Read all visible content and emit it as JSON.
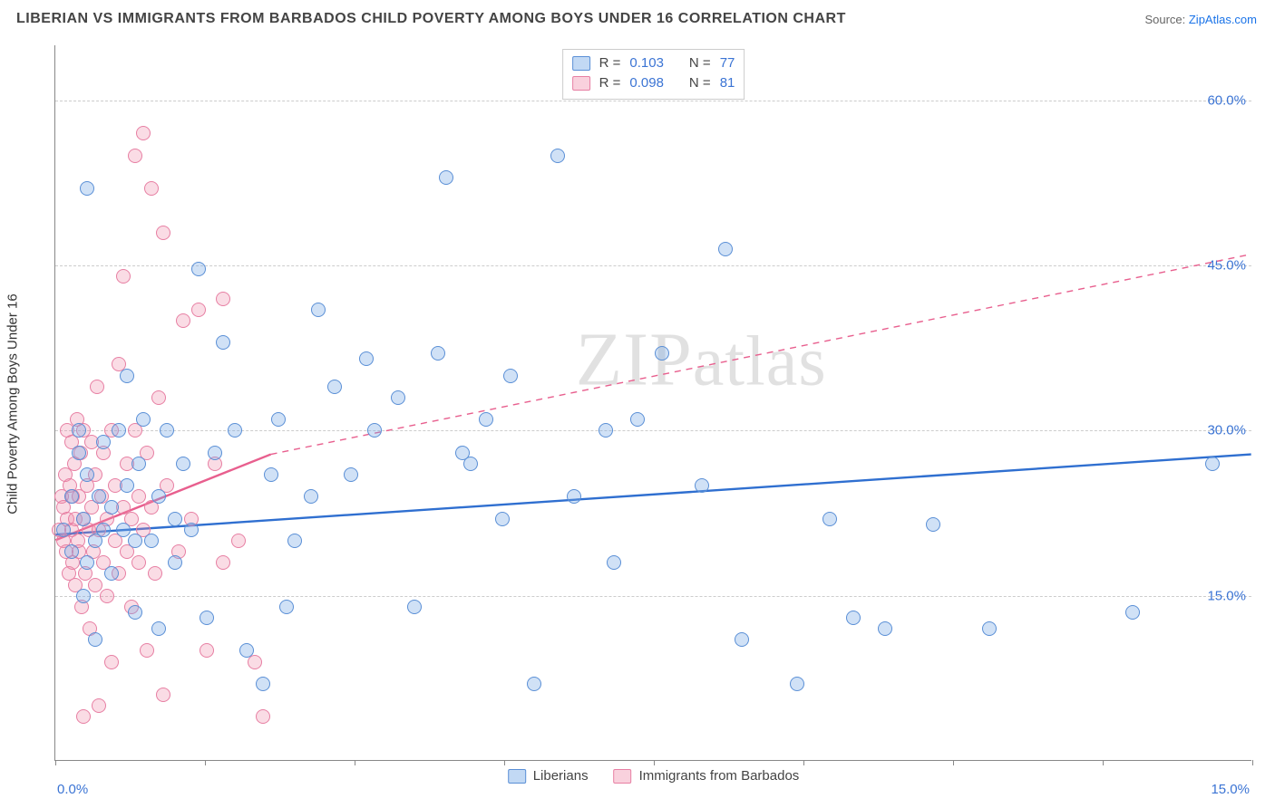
{
  "title": "LIBERIAN VS IMMIGRANTS FROM BARBADOS CHILD POVERTY AMONG BOYS UNDER 16 CORRELATION CHART",
  "source": {
    "label": "Source: ",
    "name": "ZipAtlas.com"
  },
  "chart": {
    "type": "scatter",
    "y_axis_title": "Child Poverty Among Boys Under 16",
    "xlim": [
      0,
      15
    ],
    "ylim": [
      0,
      65
    ],
    "x_ticks_label": {
      "min": "0.0%",
      "max": "15.0%"
    },
    "y_ticks": [
      {
        "v": 15,
        "label": "15.0%"
      },
      {
        "v": 30,
        "label": "30.0%"
      },
      {
        "v": 45,
        "label": "45.0%"
      },
      {
        "v": 60,
        "label": "60.0%"
      }
    ],
    "x_tick_positions": [
      0,
      1.88,
      3.75,
      5.63,
      7.5,
      9.38,
      11.25,
      13.13,
      15
    ],
    "background_color": "#ffffff",
    "grid_color": "#cccccc",
    "series": {
      "a": {
        "label": "Liberians",
        "marker_fill": "rgba(120,170,230,0.35)",
        "marker_stroke": "#5a8fd6",
        "line_color": "#2f6fd0",
        "line_width": 2.4,
        "R": "0.103",
        "N": "77",
        "trend_solid": {
          "x1": 0,
          "y1": 20.5,
          "x2": 15,
          "y2": 27.8
        },
        "points": [
          [
            0.1,
            21
          ],
          [
            0.2,
            24
          ],
          [
            0.2,
            19
          ],
          [
            0.3,
            28
          ],
          [
            0.3,
            30
          ],
          [
            0.35,
            15
          ],
          [
            0.35,
            22
          ],
          [
            0.4,
            26
          ],
          [
            0.4,
            18
          ],
          [
            0.5,
            20
          ],
          [
            0.5,
            11
          ],
          [
            0.55,
            24
          ],
          [
            0.6,
            29
          ],
          [
            0.6,
            21
          ],
          [
            0.7,
            23
          ],
          [
            0.7,
            17
          ],
          [
            0.8,
            30
          ],
          [
            0.85,
            21
          ],
          [
            0.9,
            25
          ],
          [
            0.9,
            35
          ],
          [
            1.0,
            20
          ],
          [
            1.0,
            13.5
          ],
          [
            1.05,
            27
          ],
          [
            1.1,
            31
          ],
          [
            1.2,
            20
          ],
          [
            1.3,
            24
          ],
          [
            1.3,
            12
          ],
          [
            1.4,
            30
          ],
          [
            1.5,
            22
          ],
          [
            1.5,
            18
          ],
          [
            1.6,
            27
          ],
          [
            1.7,
            21
          ],
          [
            1.8,
            44.7
          ],
          [
            1.9,
            13
          ],
          [
            2.0,
            28
          ],
          [
            2.1,
            38
          ],
          [
            2.25,
            30
          ],
          [
            2.4,
            10
          ],
          [
            2.6,
            7
          ],
          [
            2.7,
            26
          ],
          [
            2.8,
            31
          ],
          [
            2.9,
            14
          ],
          [
            3.0,
            20
          ],
          [
            3.2,
            24
          ],
          [
            3.3,
            41
          ],
          [
            3.5,
            34
          ],
          [
            3.7,
            26
          ],
          [
            3.9,
            36.5
          ],
          [
            4.0,
            30
          ],
          [
            4.3,
            33
          ],
          [
            4.5,
            14
          ],
          [
            4.8,
            37
          ],
          [
            4.9,
            53
          ],
          [
            5.1,
            28
          ],
          [
            5.2,
            27
          ],
          [
            5.4,
            31
          ],
          [
            5.6,
            22
          ],
          [
            5.7,
            35
          ],
          [
            6.0,
            7
          ],
          [
            6.3,
            55
          ],
          [
            6.5,
            24
          ],
          [
            7.0,
            18
          ],
          [
            7.3,
            31
          ],
          [
            7.6,
            37
          ],
          [
            8.1,
            25
          ],
          [
            8.4,
            46.5
          ],
          [
            8.6,
            11
          ],
          [
            9.3,
            7
          ],
          [
            9.7,
            22
          ],
          [
            10.0,
            13
          ],
          [
            10.4,
            12
          ],
          [
            11.0,
            21.5
          ],
          [
            11.7,
            12
          ],
          [
            13.5,
            13.5
          ],
          [
            14.5,
            27
          ],
          [
            0.4,
            52
          ],
          [
            6.9,
            30
          ]
        ]
      },
      "b": {
        "label": "Immigrants from Barbados",
        "marker_fill": "rgba(240,140,170,0.30)",
        "marker_stroke": "#e77fa3",
        "line_color": "#e85f8e",
        "line_width": 2.4,
        "R": "0.098",
        "N": "81",
        "trend_solid": {
          "x1": 0,
          "y1": 20.0,
          "x2": 2.7,
          "y2": 27.8
        },
        "trend_dashed": {
          "x1": 2.7,
          "y1": 27.8,
          "x2": 15,
          "y2": 46.0
        },
        "points": [
          [
            0.05,
            21
          ],
          [
            0.08,
            24
          ],
          [
            0.1,
            20
          ],
          [
            0.1,
            23
          ],
          [
            0.12,
            26
          ],
          [
            0.14,
            19
          ],
          [
            0.15,
            22
          ],
          [
            0.15,
            30
          ],
          [
            0.17,
            17
          ],
          [
            0.18,
            25
          ],
          [
            0.2,
            21
          ],
          [
            0.2,
            29
          ],
          [
            0.22,
            18
          ],
          [
            0.22,
            24
          ],
          [
            0.24,
            27
          ],
          [
            0.25,
            16
          ],
          [
            0.25,
            22
          ],
          [
            0.27,
            31
          ],
          [
            0.28,
            20
          ],
          [
            0.3,
            24
          ],
          [
            0.3,
            19
          ],
          [
            0.32,
            28
          ],
          [
            0.33,
            14
          ],
          [
            0.35,
            22
          ],
          [
            0.35,
            30
          ],
          [
            0.38,
            17
          ],
          [
            0.4,
            25
          ],
          [
            0.42,
            21
          ],
          [
            0.43,
            12
          ],
          [
            0.45,
            23
          ],
          [
            0.45,
            29
          ],
          [
            0.48,
            19
          ],
          [
            0.5,
            26
          ],
          [
            0.5,
            16
          ],
          [
            0.52,
            34
          ],
          [
            0.55,
            21
          ],
          [
            0.58,
            24
          ],
          [
            0.6,
            18
          ],
          [
            0.6,
            28
          ],
          [
            0.65,
            15
          ],
          [
            0.65,
            22
          ],
          [
            0.7,
            30
          ],
          [
            0.7,
            9
          ],
          [
            0.75,
            20
          ],
          [
            0.75,
            25
          ],
          [
            0.8,
            17
          ],
          [
            0.8,
            36
          ],
          [
            0.85,
            23
          ],
          [
            0.85,
            44
          ],
          [
            0.9,
            19
          ],
          [
            0.9,
            27
          ],
          [
            0.95,
            14
          ],
          [
            0.95,
            22
          ],
          [
            1.0,
            30
          ],
          [
            1.0,
            55
          ],
          [
            1.05,
            18
          ],
          [
            1.05,
            24
          ],
          [
            1.1,
            57
          ],
          [
            1.1,
            21
          ],
          [
            1.15,
            28
          ],
          [
            1.15,
            10
          ],
          [
            1.2,
            23
          ],
          [
            1.2,
            52
          ],
          [
            1.25,
            17
          ],
          [
            1.3,
            33
          ],
          [
            1.35,
            48
          ],
          [
            1.4,
            25
          ],
          [
            1.55,
            19
          ],
          [
            1.6,
            40
          ],
          [
            1.7,
            22
          ],
          [
            1.8,
            41
          ],
          [
            1.9,
            10
          ],
          [
            2.0,
            27
          ],
          [
            2.1,
            18
          ],
          [
            2.1,
            42
          ],
          [
            2.3,
            20
          ],
          [
            2.5,
            9
          ],
          [
            2.6,
            4
          ],
          [
            1.35,
            6
          ],
          [
            0.35,
            4
          ],
          [
            0.55,
            5
          ]
        ]
      }
    },
    "legend_top": {
      "rows": [
        {
          "sw": "a",
          "r_label": "R =",
          "r_val_key": "chart.series.a.R",
          "n_label": "N =",
          "n_val_key": "chart.series.a.N"
        },
        {
          "sw": "b",
          "r_label": "R =",
          "r_val_key": "chart.series.b.R",
          "n_label": "N =",
          "n_val_key": "chart.series.b.N"
        }
      ]
    },
    "watermark": "ZIPatlas"
  }
}
